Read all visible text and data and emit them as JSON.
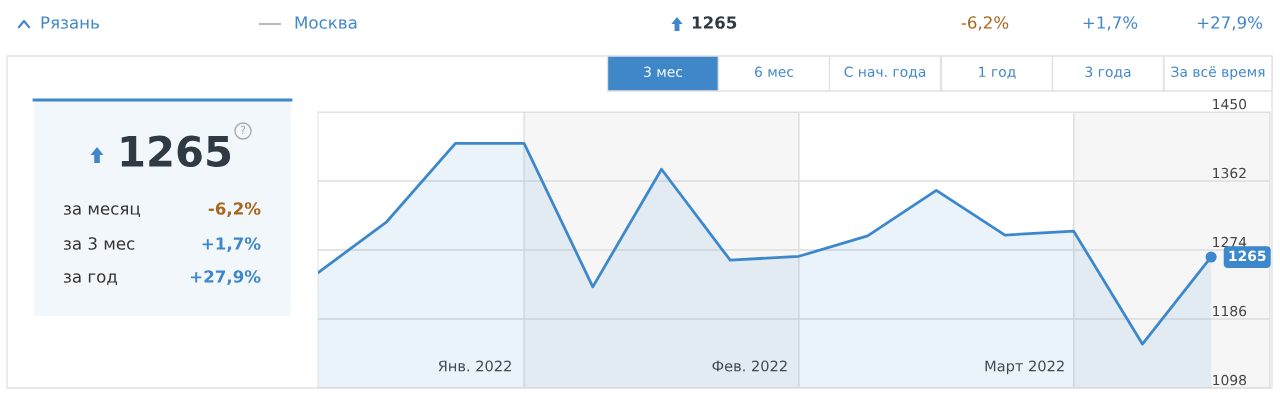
{
  "chart_data": {
    "type": "area",
    "x": [
      "2022-01-10",
      "2022-01-17",
      "2022-01-24",
      "2022-01-31",
      "2022-02-07",
      "2022-02-14",
      "2022-02-21",
      "2022-02-28",
      "2022-03-07",
      "2022-03-14",
      "2022-03-21",
      "2022-03-28",
      "2022-04-04",
      "2022-04-11"
    ],
    "series": [
      {
        "color": "#3d88cc",
        "values": [
          1245,
          1310,
          1410,
          1410,
          1227,
          1377,
          1261,
          1266,
          1292,
          1350,
          1293,
          1298,
          1154,
          1265
        ],
        "value_labels": [
          null,
          null,
          null,
          null,
          null,
          null,
          null,
          null,
          null,
          null,
          null,
          null,
          null,
          "1265"
        ]
      }
    ],
    "xlim": [
      "2022-01-10",
      "2022-04-17"
    ],
    "xticks": [
      {
        "value": "2022-01-26",
        "label": "Янв. 2022"
      },
      {
        "value": "2022-02-23",
        "label": "Фев. 2022"
      },
      {
        "value": "2022-03-23",
        "label": "Март 2022"
      }
    ],
    "ylim": [
      1098,
      1450
    ],
    "yticks": [
      1098,
      1186,
      1274,
      1362,
      1450
    ],
    "grid": "y",
    "bands": [
      {
        "axis": "x",
        "from": "2022-01-31",
        "to": "2022-02-28",
        "color": "#f6f6f6"
      },
      {
        "axis": "x",
        "from": "2022-03-28",
        "to": "2022-04-17",
        "color": "#f6f6f6"
      }
    ],
    "annotations": [
      "Рязань",
      "Москва",
      "1265",
      "-6,2%",
      "+1,7%",
      "+27,9%",
      "3 мес",
      "6 мес",
      "С нач. года",
      "1 год",
      "3 года",
      "За всё время",
      "1265",
      "?",
      "за месяц",
      "-6,2%",
      "за 3 мес",
      "+1,7%",
      "за год",
      "+27,9%"
    ]
  }
}
